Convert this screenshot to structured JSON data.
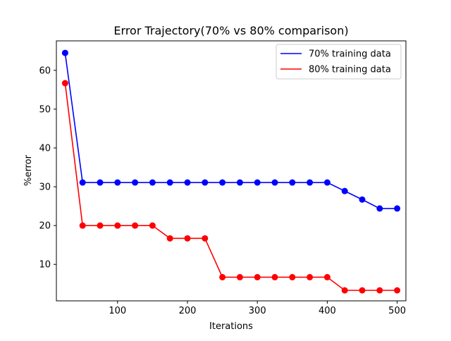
{
  "chart_data": {
    "type": "line",
    "title": "Error Trajectory(70% vs 80% comparison)",
    "xlabel": "Iterations",
    "ylabel": "%error",
    "xlim": [
      12.5,
      512.5
    ],
    "ylim": [
      0.6,
      67.6
    ],
    "xticks": [
      100,
      200,
      300,
      400,
      500
    ],
    "yticks": [
      10,
      20,
      30,
      40,
      50,
      60
    ],
    "grid": false,
    "legend_position": "top-right",
    "x": [
      25,
      50,
      75,
      100,
      125,
      150,
      175,
      200,
      225,
      250,
      275,
      300,
      325,
      350,
      375,
      400,
      425,
      450,
      475,
      500
    ],
    "series": [
      {
        "name": "70% training data",
        "color": "#0000ff",
        "marker": "circle",
        "values": [
          64.5,
          31.1,
          31.1,
          31.1,
          31.1,
          31.1,
          31.1,
          31.1,
          31.1,
          31.1,
          31.1,
          31.1,
          31.1,
          31.1,
          31.1,
          31.1,
          28.9,
          26.7,
          24.4,
          24.4
        ]
      },
      {
        "name": "80% training data",
        "color": "#ff0000",
        "marker": "circle",
        "values": [
          56.7,
          20.0,
          20.0,
          20.0,
          20.0,
          20.0,
          16.7,
          16.7,
          16.7,
          6.7,
          6.7,
          6.7,
          6.7,
          6.7,
          6.7,
          6.7,
          3.3,
          3.3,
          3.3,
          3.3
        ]
      }
    ]
  }
}
